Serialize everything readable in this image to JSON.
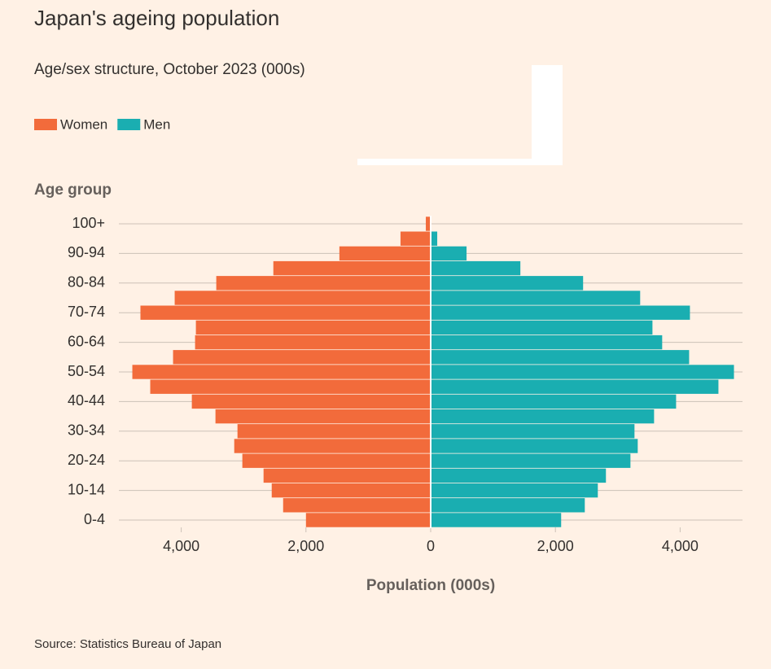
{
  "chart_data": {
    "type": "pyramid",
    "title": "Japan's ageing population",
    "subtitle": "Age/sex structure, October 2023 (000s)",
    "y_label": "Age group",
    "x_label": "Population (000s)",
    "source": "Source: Statistics Bureau of Japan",
    "categories": [
      "0-4",
      null,
      "10-14",
      null,
      "20-24",
      null,
      "30-34",
      null,
      "40-44",
      null,
      "50-54",
      null,
      "60-64",
      null,
      "70-74",
      null,
      "80-84",
      null,
      "90-94",
      null,
      "100+"
    ],
    "series": [
      {
        "name": "Women",
        "color": "#f26b3b",
        "side": "left",
        "values": [
          2000,
          2366,
          2549,
          2680,
          3020,
          3150,
          3098,
          3451,
          3830,
          4497,
          4784,
          4131,
          3778,
          3765,
          4654,
          4105,
          3438,
          2523,
          1464,
          484,
          78
        ]
      },
      {
        "name": "Men",
        "color": "#1aaeb1",
        "side": "right",
        "values": [
          2092,
          2471,
          2680,
          2810,
          3203,
          3320,
          3268,
          3582,
          3935,
          4614,
          4863,
          4144,
          3712,
          3556,
          4157,
          3359,
          2444,
          1438,
          575,
          105,
          13
        ]
      }
    ],
    "xlim": [
      -5000,
      5000
    ],
    "xticks": [
      {
        "value": -4000,
        "label": "4,000"
      },
      {
        "value": -2000,
        "label": "2,000"
      },
      0,
      {
        "value": 2000,
        "label": "2,000"
      },
      {
        "value": 4000,
        "label": "4,000"
      }
    ]
  }
}
